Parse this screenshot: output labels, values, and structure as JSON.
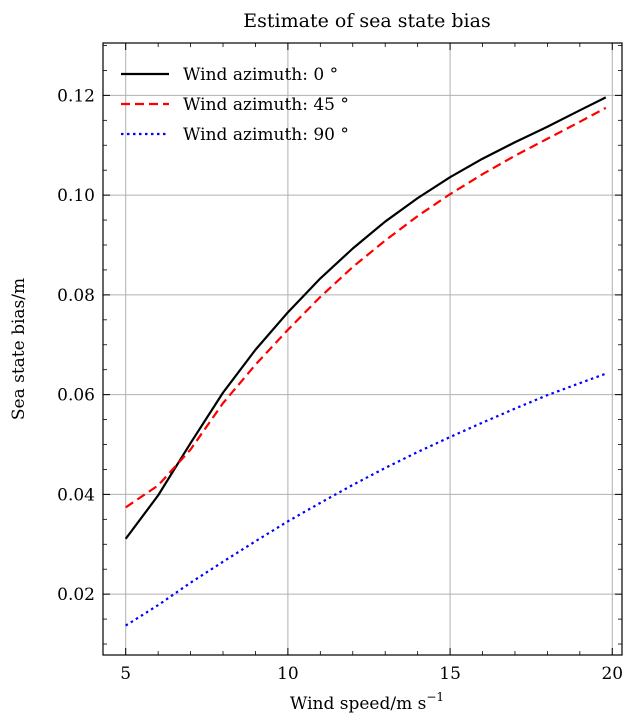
{
  "chart_data": {
    "type": "line",
    "title": "Estimate of sea state bias",
    "xlabel": "Wind speed/m s",
    "xlabel_sup": "−1",
    "ylabel": "Sea state bias/m",
    "xlim": [
      4.3,
      20.3
    ],
    "ylim": [
      0.0078,
      0.1305
    ],
    "xticks": [
      5,
      10,
      15,
      20
    ],
    "xtick_labels": [
      "5",
      "10",
      "15",
      "20"
    ],
    "yticks": [
      0.02,
      0.04,
      0.06,
      0.08,
      0.1,
      0.12
    ],
    "ytick_labels": [
      "0.02",
      "0.04",
      "0.06",
      "0.08",
      "0.10",
      "0.12"
    ],
    "grid": true,
    "legend_position": "top-left",
    "series": [
      {
        "name": "Wind azimuth: 0 °",
        "color": "#000000",
        "style": "solid",
        "x": [
          5,
          6,
          7,
          8,
          9,
          10,
          11,
          12,
          13,
          14,
          15,
          16,
          17,
          18,
          19,
          19.8
        ],
        "y": [
          0.0311,
          0.0398,
          0.0503,
          0.0604,
          0.069,
          0.0765,
          0.0833,
          0.0893,
          0.0947,
          0.0994,
          0.1036,
          0.1073,
          0.1106,
          0.1137,
          0.117,
          0.1196
        ]
      },
      {
        "name": "Wind azimuth: 45 °",
        "color": "#ff0000",
        "style": "dashed",
        "x": [
          5,
          6,
          7,
          8,
          9,
          10,
          11,
          12,
          13,
          14,
          15,
          16,
          17,
          18,
          19,
          19.8
        ],
        "y": [
          0.0374,
          0.0418,
          0.049,
          0.0583,
          0.066,
          0.073,
          0.0796,
          0.0856,
          0.0909,
          0.0958,
          0.1002,
          0.1042,
          0.1079,
          0.1113,
          0.1147,
          0.1175
        ]
      },
      {
        "name": "Wind azimuth: 90 °",
        "color": "#0000ff",
        "style": "dotted",
        "x": [
          5,
          6,
          7,
          8,
          9,
          10,
          11,
          12,
          13,
          14,
          15,
          16,
          17,
          18,
          19,
          19.8
        ],
        "y": [
          0.0137,
          0.0178,
          0.0223,
          0.0265,
          0.0306,
          0.0346,
          0.0383,
          0.0419,
          0.0453,
          0.0485,
          0.0515,
          0.0544,
          0.0572,
          0.0599,
          0.0623,
          0.0642
        ]
      }
    ]
  }
}
